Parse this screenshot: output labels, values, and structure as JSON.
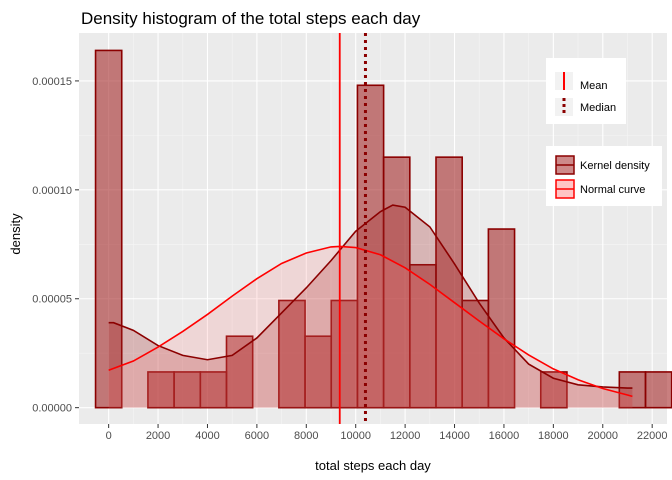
{
  "chart_data": {
    "type": "histogram",
    "title": "Density histogram of the total steps each day",
    "xlabel": "total steps each day",
    "ylabel": "density",
    "xlim": [
      -1200,
      22600
    ],
    "ylim": [
      -7.5e-06,
      0.000172
    ],
    "grid": true,
    "x_ticks": [
      0,
      2000,
      4000,
      6000,
      8000,
      10000,
      12000,
      14000,
      16000,
      18000,
      20000,
      22000
    ],
    "y_ticks": [
      0,
      5e-05,
      0.0001,
      0.00015
    ],
    "x_tick_labels": [
      "0",
      "2000",
      "4000",
      "6000",
      "8000",
      "10000",
      "12000",
      "14000",
      "16000",
      "18000",
      "20000",
      "22000"
    ],
    "y_tick_labels": [
      "0.00000",
      "0.00005",
      "0.00010",
      "0.00015"
    ],
    "bins": [
      {
        "start": -530,
        "end": 530,
        "density": 0.000164
      },
      {
        "start": 1590,
        "end": 2650,
        "density": 1.64e-05
      },
      {
        "start": 2650,
        "end": 3710,
        "density": 1.64e-05
      },
      {
        "start": 3710,
        "end": 4770,
        "density": 1.64e-05
      },
      {
        "start": 4770,
        "end": 5830,
        "density": 3.28e-05
      },
      {
        "start": 6890,
        "end": 7950,
        "density": 4.92e-05
      },
      {
        "start": 7950,
        "end": 9010,
        "density": 3.28e-05
      },
      {
        "start": 9010,
        "end": 10070,
        "density": 4.92e-05
      },
      {
        "start": 10070,
        "end": 11130,
        "density": 0.000148
      },
      {
        "start": 11130,
        "end": 12190,
        "density": 0.000115
      },
      {
        "start": 12190,
        "end": 13250,
        "density": 6.56e-05
      },
      {
        "start": 13250,
        "end": 14310,
        "density": 0.000115
      },
      {
        "start": 14310,
        "end": 15370,
        "density": 4.92e-05
      },
      {
        "start": 15370,
        "end": 16430,
        "density": 8.2e-05
      },
      {
        "start": 17490,
        "end": 18550,
        "density": 1.64e-05
      },
      {
        "start": 20670,
        "end": 21730,
        "density": 1.64e-05
      },
      {
        "start": 21730,
        "end": 22790,
        "density": 1.64e-05
      }
    ],
    "mean": 9354,
    "median": 10395,
    "kernel_density": {
      "x": [
        0,
        200,
        1000,
        2000,
        3000,
        4000,
        5000,
        6000,
        7000,
        8000,
        9000,
        10000,
        11000,
        11500,
        12000,
        13000,
        14000,
        15000,
        16000,
        17000,
        18000,
        19000,
        20000,
        21000,
        21200
      ],
      "y": [
        3.9e-05,
        3.9e-05,
        3.55e-05,
        2.85e-05,
        2.4e-05,
        2.2e-05,
        2.4e-05,
        3.2e-05,
        4.35e-05,
        5.5e-05,
        6.75e-05,
        8.1e-05,
        9e-05,
        9.3e-05,
        9.2e-05,
        8.3e-05,
        6.6e-05,
        4.8e-05,
        3.2e-05,
        2e-05,
        1.35e-05,
        1.05e-05,
        9.5e-06,
        9e-06,
        9e-06
      ]
    },
    "normal_curve": {
      "x": [
        0,
        1000,
        2000,
        3000,
        4000,
        5000,
        6000,
        7000,
        8000,
        9000,
        9354,
        10000,
        11000,
        12000,
        13000,
        14000,
        15000,
        16000,
        17000,
        18000,
        19000,
        20000,
        21000,
        21200
      ],
      "y": [
        1.72e-05,
        2.14e-05,
        2.78e-05,
        3.5e-05,
        4.28e-05,
        5.12e-05,
        5.92e-05,
        6.62e-05,
        7.1e-05,
        7.38e-05,
        7.4e-05,
        7.35e-05,
        7.02e-05,
        6.42e-05,
        5.66e-05,
        4.82e-05,
        3.98e-05,
        3.16e-05,
        2.42e-05,
        1.78e-05,
        1.28e-05,
        8.8e-06,
        5.8e-06,
        5.2e-06
      ]
    },
    "legend": {
      "lines": [
        "Mean",
        "Median"
      ],
      "fills": [
        "Kernel density",
        "Normal curve"
      ],
      "placement": "right-inside"
    },
    "colors": {
      "panel": "#ebebeb",
      "grid": "#ffffff",
      "bar_fill": "#a52a2a",
      "bar_stroke": "#8b0000",
      "kernel": "#8b0000",
      "normal": "#ff0000",
      "mean": "#ff0000",
      "median": "#8b0000"
    }
  }
}
